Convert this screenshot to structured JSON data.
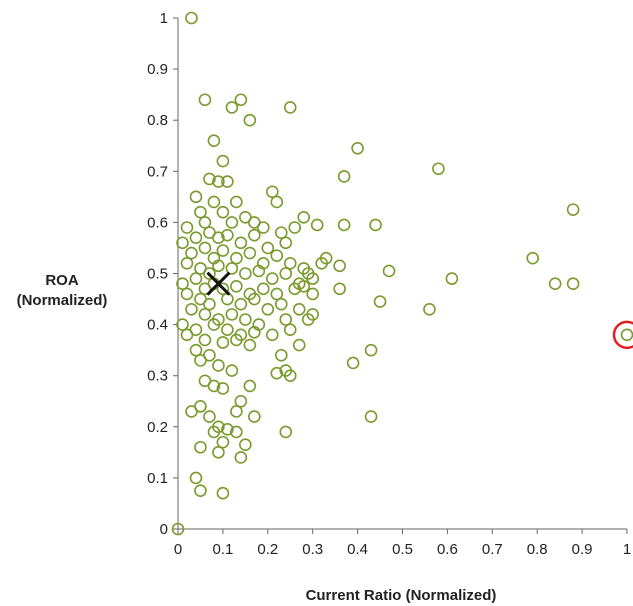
{
  "chart_data": {
    "type": "scatter",
    "title": "",
    "xlabel": "Current Ratio (Normalized)",
    "ylabel_lines": [
      "ROA",
      "(Normalized)"
    ],
    "xlim": [
      0,
      1
    ],
    "ylim": [
      0,
      1
    ],
    "x_ticks": [
      "0",
      "0.1",
      "0.2",
      "0.3",
      "0.4",
      "0.5",
      "0.6",
      "0.7",
      "0.8",
      "0.9",
      "1"
    ],
    "y_ticks": [
      "0",
      "0.1",
      "0.2",
      "0.3",
      "0.4",
      "0.5",
      "0.6",
      "0.7",
      "0.8",
      "0.9",
      "1"
    ],
    "grid": false,
    "marker_color": "#7a9a2e",
    "centroid_color": "#111111",
    "outlier_highlight_color": "#e02020",
    "series": [
      {
        "points": [
          [
            0.03,
            1.0
          ],
          [
            0.06,
            0.84
          ],
          [
            0.14,
            0.84
          ],
          [
            0.12,
            0.825
          ],
          [
            0.25,
            0.825
          ],
          [
            0.16,
            0.8
          ],
          [
            0.08,
            0.76
          ],
          [
            0.1,
            0.72
          ],
          [
            0.07,
            0.685
          ],
          [
            0.09,
            0.68
          ],
          [
            0.11,
            0.68
          ],
          [
            0.21,
            0.66
          ],
          [
            0.04,
            0.65
          ],
          [
            0.08,
            0.64
          ],
          [
            0.13,
            0.64
          ],
          [
            0.05,
            0.62
          ],
          [
            0.1,
            0.62
          ],
          [
            0.15,
            0.61
          ],
          [
            0.17,
            0.6
          ],
          [
            0.22,
            0.64
          ],
          [
            0.02,
            0.59
          ],
          [
            0.06,
            0.6
          ],
          [
            0.12,
            0.6
          ],
          [
            0.19,
            0.59
          ],
          [
            0.23,
            0.58
          ],
          [
            0.26,
            0.59
          ],
          [
            0.28,
            0.61
          ],
          [
            0.31,
            0.595
          ],
          [
            0.01,
            0.56
          ],
          [
            0.04,
            0.57
          ],
          [
            0.07,
            0.58
          ],
          [
            0.09,
            0.57
          ],
          [
            0.11,
            0.575
          ],
          [
            0.14,
            0.56
          ],
          [
            0.17,
            0.575
          ],
          [
            0.2,
            0.55
          ],
          [
            0.24,
            0.56
          ],
          [
            0.03,
            0.54
          ],
          [
            0.06,
            0.55
          ],
          [
            0.08,
            0.53
          ],
          [
            0.1,
            0.545
          ],
          [
            0.13,
            0.53
          ],
          [
            0.16,
            0.54
          ],
          [
            0.19,
            0.52
          ],
          [
            0.22,
            0.535
          ],
          [
            0.25,
            0.52
          ],
          [
            0.28,
            0.51
          ],
          [
            0.02,
            0.52
          ],
          [
            0.05,
            0.51
          ],
          [
            0.07,
            0.5
          ],
          [
            0.09,
            0.515
          ],
          [
            0.12,
            0.51
          ],
          [
            0.15,
            0.5
          ],
          [
            0.18,
            0.505
          ],
          [
            0.21,
            0.49
          ],
          [
            0.24,
            0.5
          ],
          [
            0.27,
            0.48
          ],
          [
            0.3,
            0.49
          ],
          [
            0.29,
            0.5
          ],
          [
            0.01,
            0.48
          ],
          [
            0.04,
            0.49
          ],
          [
            0.06,
            0.47
          ],
          [
            0.08,
            0.48
          ],
          [
            0.1,
            0.47
          ],
          [
            0.13,
            0.475
          ],
          [
            0.16,
            0.46
          ],
          [
            0.19,
            0.47
          ],
          [
            0.22,
            0.46
          ],
          [
            0.26,
            0.47
          ],
          [
            0.28,
            0.475
          ],
          [
            0.3,
            0.46
          ],
          [
            0.02,
            0.46
          ],
          [
            0.05,
            0.45
          ],
          [
            0.07,
            0.44
          ],
          [
            0.11,
            0.45
          ],
          [
            0.14,
            0.44
          ],
          [
            0.17,
            0.45
          ],
          [
            0.2,
            0.43
          ],
          [
            0.23,
            0.44
          ],
          [
            0.27,
            0.43
          ],
          [
            0.03,
            0.43
          ],
          [
            0.06,
            0.42
          ],
          [
            0.09,
            0.41
          ],
          [
            0.12,
            0.42
          ],
          [
            0.15,
            0.41
          ],
          [
            0.18,
            0.4
          ],
          [
            0.24,
            0.41
          ],
          [
            0.29,
            0.41
          ],
          [
            0.3,
            0.42
          ],
          [
            0.01,
            0.4
          ],
          [
            0.04,
            0.39
          ],
          [
            0.08,
            0.4
          ],
          [
            0.11,
            0.39
          ],
          [
            0.14,
            0.38
          ],
          [
            0.17,
            0.385
          ],
          [
            0.21,
            0.38
          ],
          [
            0.25,
            0.39
          ],
          [
            0.02,
            0.38
          ],
          [
            0.06,
            0.37
          ],
          [
            0.1,
            0.365
          ],
          [
            0.13,
            0.37
          ],
          [
            0.16,
            0.36
          ],
          [
            0.27,
            0.36
          ],
          [
            0.04,
            0.35
          ],
          [
            0.07,
            0.34
          ],
          [
            0.05,
            0.33
          ],
          [
            0.09,
            0.32
          ],
          [
            0.12,
            0.31
          ],
          [
            0.23,
            0.34
          ],
          [
            0.24,
            0.31
          ],
          [
            0.25,
            0.3
          ],
          [
            0.22,
            0.305
          ],
          [
            0.06,
            0.29
          ],
          [
            0.08,
            0.28
          ],
          [
            0.1,
            0.275
          ],
          [
            0.16,
            0.28
          ],
          [
            0.14,
            0.25
          ],
          [
            0.13,
            0.23
          ],
          [
            0.17,
            0.22
          ],
          [
            0.05,
            0.24
          ],
          [
            0.07,
            0.22
          ],
          [
            0.03,
            0.23
          ],
          [
            0.09,
            0.2
          ],
          [
            0.11,
            0.195
          ],
          [
            0.08,
            0.19
          ],
          [
            0.13,
            0.19
          ],
          [
            0.1,
            0.17
          ],
          [
            0.15,
            0.165
          ],
          [
            0.24,
            0.19
          ],
          [
            0.05,
            0.16
          ],
          [
            0.09,
            0.15
          ],
          [
            0.14,
            0.14
          ],
          [
            0.04,
            0.1
          ],
          [
            0.05,
            0.075
          ],
          [
            0.1,
            0.07
          ],
          [
            0.0,
            0.0
          ],
          [
            0.37,
            0.69
          ],
          [
            0.4,
            0.745
          ],
          [
            0.58,
            0.705
          ],
          [
            0.88,
            0.625
          ],
          [
            0.37,
            0.595
          ],
          [
            0.44,
            0.595
          ],
          [
            0.79,
            0.53
          ],
          [
            0.36,
            0.515
          ],
          [
            0.47,
            0.505
          ],
          [
            0.61,
            0.49
          ],
          [
            0.84,
            0.48
          ],
          [
            0.88,
            0.48
          ],
          [
            0.36,
            0.47
          ],
          [
            0.45,
            0.445
          ],
          [
            0.56,
            0.43
          ],
          [
            0.43,
            0.35
          ],
          [
            0.39,
            0.325
          ],
          [
            0.43,
            0.22
          ],
          [
            0.32,
            0.52
          ],
          [
            0.33,
            0.53
          ]
        ]
      }
    ],
    "centroid": {
      "x": 0.09,
      "y": 0.48
    },
    "highlighted_outlier": {
      "x": 1.0,
      "y": 0.38
    }
  }
}
